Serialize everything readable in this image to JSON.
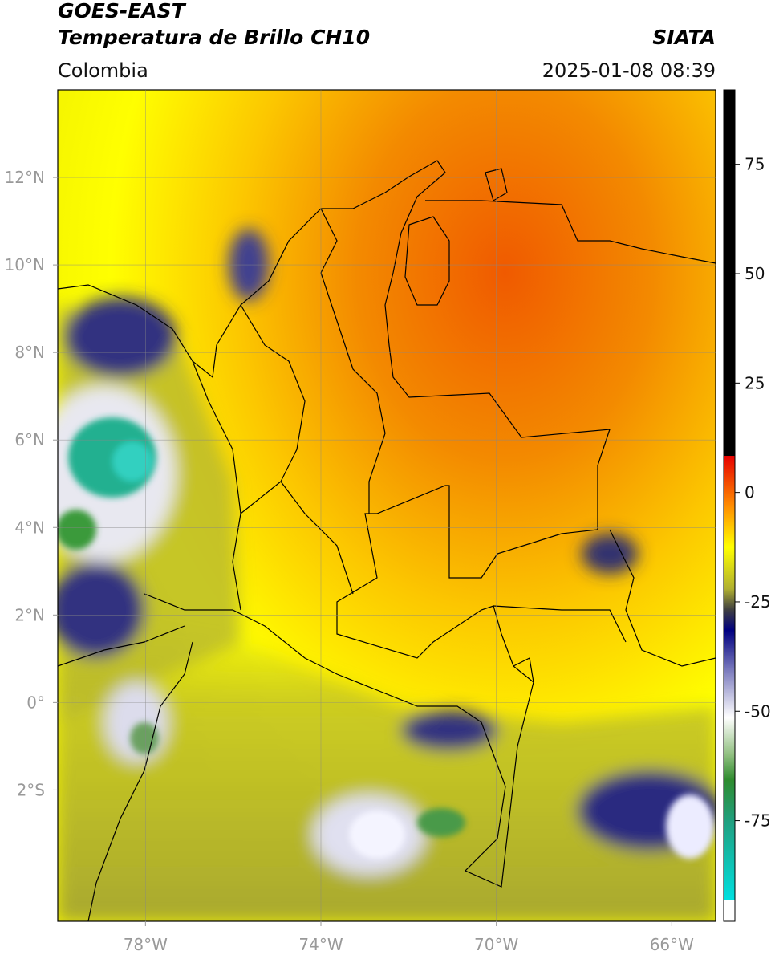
{
  "header": {
    "title": "GOES-EAST",
    "subtitle": "Temperatura de Brillo CH10",
    "source": "SIATA",
    "region": "Colombia",
    "datetime": "2025-01-08 08:39"
  },
  "map": {
    "lon_range": [
      -80,
      -65
    ],
    "lat_range": [
      -5,
      14
    ],
    "grid": true,
    "lon_ticks": [
      {
        "value": -78,
        "label": "78°W"
      },
      {
        "value": -74,
        "label": "74°W"
      },
      {
        "value": -70,
        "label": "70°W"
      },
      {
        "value": -66,
        "label": "66°W"
      }
    ],
    "lat_ticks": [
      {
        "value": 12,
        "label": "12°N"
      },
      {
        "value": 10,
        "label": "10°N"
      },
      {
        "value": 8,
        "label": "8°N"
      },
      {
        "value": 6,
        "label": "6°N"
      },
      {
        "value": 4,
        "label": "4°N"
      },
      {
        "value": 2,
        "label": "2°N"
      },
      {
        "value": 0,
        "label": "0°"
      },
      {
        "value": -2,
        "label": "2°S"
      }
    ]
  },
  "colorbar": {
    "range": [
      -98,
      92
    ],
    "ticks": [
      75,
      50,
      25,
      0,
      -25,
      -50,
      -75
    ]
  }
}
